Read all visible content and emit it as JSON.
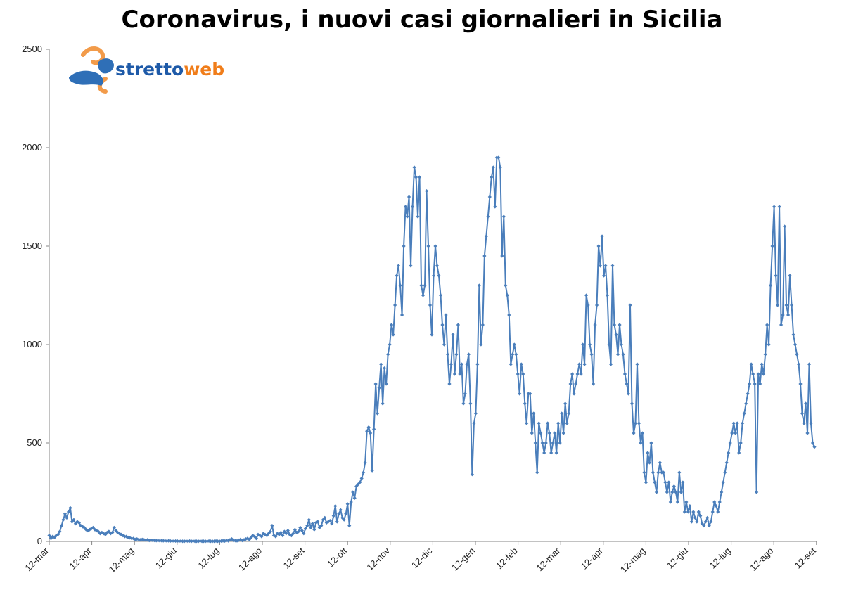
{
  "chart_data": {
    "type": "line",
    "title": "Coronavirus, i nuovi casi giornalieri in Sicilia",
    "xlabel": "",
    "ylabel": "",
    "ylim": [
      0,
      2500
    ],
    "yticks": [
      "0",
      "500",
      "1000",
      "1500",
      "2000",
      "2500"
    ],
    "xticks": [
      "12-mar",
      "12-apr",
      "12-mag",
      "12-giu",
      "12-lug",
      "12-ago",
      "12-set",
      "12-ott",
      "12-nov",
      "12-dic",
      "12-gen",
      "12-feb",
      "12-mar",
      "12-apr",
      "12-mag",
      "12-giu",
      "12-lug",
      "12-ago",
      "12-set"
    ],
    "grid": false,
    "legend": "none",
    "line_color": "#4a7ebb",
    "series": [
      {
        "values": [
          30,
          15,
          25,
          20,
          30,
          35,
          50,
          80,
          110,
          140,
          120,
          150,
          170,
          100,
          110,
          90,
          100,
          95,
          80,
          75,
          70,
          60,
          55,
          60,
          65,
          70,
          60,
          55,
          50,
          40,
          45,
          40,
          35,
          45,
          50,
          40,
          45,
          70,
          55,
          45,
          40,
          35,
          30,
          25,
          25,
          20,
          18,
          15,
          15,
          10,
          12,
          10,
          8,
          10,
          8,
          6,
          8,
          5,
          6,
          5,
          5,
          4,
          4,
          3,
          4,
          3,
          3,
          2,
          3,
          2,
          2,
          2,
          2,
          2,
          1,
          2,
          1,
          1,
          2,
          1,
          2,
          1,
          2,
          1,
          1,
          1,
          2,
          1,
          1,
          1,
          1,
          2,
          1,
          1,
          1,
          2,
          1,
          1,
          2,
          3,
          2,
          5,
          3,
          8,
          12,
          5,
          4,
          3,
          6,
          10,
          5,
          8,
          12,
          15,
          10,
          20,
          30,
          25,
          15,
          35,
          30,
          25,
          40,
          35,
          30,
          40,
          50,
          80,
          30,
          25,
          40,
          35,
          45,
          30,
          50,
          40,
          55,
          35,
          30,
          40,
          60,
          45,
          50,
          70,
          55,
          40,
          65,
          80,
          110,
          70,
          90,
          60,
          95,
          100,
          70,
          80,
          110,
          120,
          95,
          100,
          105,
          90,
          130,
          180,
          100,
          140,
          160,
          120,
          110,
          140,
          190,
          80,
          200,
          250,
          220,
          280,
          290,
          300,
          320,
          350,
          400,
          560,
          580,
          550,
          360,
          570,
          800,
          650,
          780,
          900,
          700,
          880,
          800,
          950,
          1000,
          1100,
          1050,
          1200,
          1350,
          1400,
          1300,
          1150,
          1500,
          1700,
          1650,
          1750,
          1400,
          1700,
          1900,
          1850,
          1650,
          1850,
          1300,
          1250,
          1300,
          1780,
          1500,
          1200,
          1050,
          1350,
          1500,
          1400,
          1350,
          1250,
          1100,
          1000,
          1150,
          950,
          800,
          900,
          1050,
          850,
          950,
          1100,
          850,
          900,
          700,
          750,
          900,
          950,
          700,
          340,
          600,
          650,
          900,
          1300,
          1000,
          1100,
          1450,
          1550,
          1650,
          1750,
          1850,
          1900,
          1700,
          1950,
          1950,
          1900,
          1450,
          1650,
          1300,
          1250,
          1150,
          900,
          950,
          1000,
          950,
          850,
          750,
          900,
          850,
          700,
          600,
          750,
          750,
          550,
          650,
          500,
          350,
          600,
          550,
          500,
          450,
          500,
          600,
          550,
          450,
          500,
          550,
          450,
          600,
          500,
          650,
          550,
          700,
          600,
          650,
          800,
          850,
          750,
          800,
          850,
          900,
          850,
          1000,
          900,
          1250,
          1200,
          1000,
          950,
          800,
          1100,
          1200,
          1500,
          1400,
          1550,
          1350,
          1400,
          1250,
          1000,
          900,
          1400,
          1100,
          1050,
          950,
          1100,
          1000,
          950,
          850,
          800,
          750,
          1200,
          700,
          550,
          600,
          900,
          600,
          500,
          550,
          350,
          300,
          450,
          400,
          500,
          350,
          300,
          250,
          350,
          400,
          350,
          350,
          300,
          250,
          300,
          200,
          250,
          280,
          250,
          200,
          350,
          250,
          300,
          150,
          200,
          150,
          180,
          100,
          150,
          120,
          100,
          150,
          130,
          90,
          80,
          100,
          120,
          80,
          100,
          150,
          200,
          180,
          150,
          200,
          250,
          300,
          350,
          400,
          450,
          500,
          550,
          600,
          550,
          600,
          450,
          500,
          600,
          650,
          700,
          750,
          800,
          900,
          850,
          800,
          250,
          850,
          800,
          900,
          850,
          950,
          1100,
          1000,
          1300,
          1500,
          1700,
          1350,
          1200,
          1700,
          1100,
          1150,
          1600,
          1200,
          1150,
          1350,
          1200,
          1050,
          1000,
          950,
          900,
          800,
          650,
          600,
          700,
          550,
          900,
          600,
          500,
          480
        ]
      }
    ]
  },
  "logo": {
    "text_part1": "stretto",
    "text_part2": "web",
    "color1": "#1e5aa8",
    "color2": "#f07d1a"
  }
}
